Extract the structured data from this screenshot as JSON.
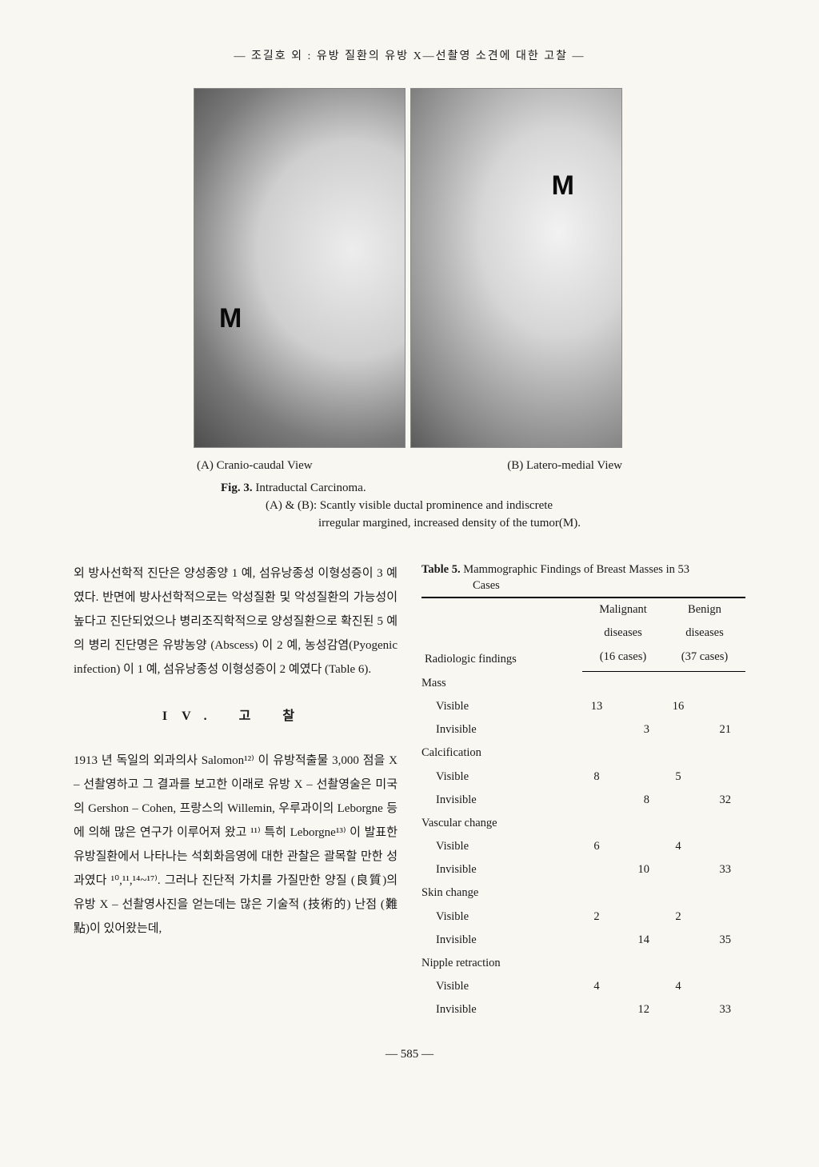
{
  "running_head": "— 조길호 외 : 유방 질환의 유방 X—선촬영 소견에 대한 고찰 —",
  "figure": {
    "m_label": "M",
    "sub_a": "(A) Cranio-caudal View",
    "sub_b": "(B) Latero-medial View",
    "num": "Fig. 3.",
    "title": "Intraductal Carcinoma.",
    "desc1": "(A) & (B): Scantly visible ductal prominence and indiscrete",
    "desc2": "irregular margined, increased density of the tumor(M)."
  },
  "left": {
    "p1": "외 방사선학적 진단은 양성종양 1 예, 섬유낭종성 이형성증이 3 예였다.   반면에 방사선학적으로는 악성질환 및 악성질환의 가능성이 높다고 진단되었으나 병리조직학적으로 양성질환으로 확진된 5 예의 병리 진단명은 유방농양 (Abscess) 이 2 예, 농성감염(Pyogenic infection) 이 1 예, 섬유낭종성 이형성증이 2 예였다 (Table 6).",
    "sec_head": "IV. 고   찰",
    "p2": "1913 년 독일의 외과의사 Salomon¹²⁾ 이 유방적출물 3,000 점을 X – 선촬영하고 그 결과를 보고한 이래로 유방 X – 선촬영술은 미국의 Gershon – Cohen, 프랑스의 Willemin, 우루과이의 Leborgne 등에 의해 많은 연구가 이루어져 왔고 ¹¹⁾ 특히 Leborgne¹³⁾ 이 발표한 유방질환에서 나타나는 석회화음영에 대한 관찰은 괄목할 만한 성과였다 ¹⁰,¹¹,¹⁴~¹⁷⁾. 그러나 진단적 가치를 가질만한 양질 (良質)의 유방 X – 선촬영사진을 얻는데는 많은 기술적 (技術的) 난점 (難點)이 있어왔는데,"
  },
  "table": {
    "title_label": "Table 5.",
    "title_text": "Mammographic Findings of Breast Masses in 53",
    "title_sub": "Cases",
    "head_radiologic": "Radiologic findings",
    "head_malig1": "Malignant",
    "head_malig2": "diseases",
    "head_malig3": "(16 cases)",
    "head_benign1": "Benign",
    "head_benign2": "diseases",
    "head_benign3": "(37 cases)",
    "rows": [
      {
        "type": "cat",
        "label": "Mass"
      },
      {
        "type": "sub",
        "label": "Visible",
        "m1": "13",
        "m2": "",
        "b1": "16",
        "b2": ""
      },
      {
        "type": "sub",
        "label": "Invisible",
        "m1": "",
        "m2": "3",
        "b1": "",
        "b2": "21"
      },
      {
        "type": "cat",
        "label": "Calcification"
      },
      {
        "type": "sub",
        "label": "Visible",
        "m1": "8",
        "m2": "",
        "b1": "5",
        "b2": ""
      },
      {
        "type": "sub",
        "label": "Invisible",
        "m1": "",
        "m2": "8",
        "b1": "",
        "b2": "32"
      },
      {
        "type": "cat",
        "label": "Vascular change"
      },
      {
        "type": "sub",
        "label": "Visible",
        "m1": "6",
        "m2": "",
        "b1": "4",
        "b2": ""
      },
      {
        "type": "sub",
        "label": "Invisible",
        "m1": "",
        "m2": "10",
        "b1": "",
        "b2": "33"
      },
      {
        "type": "cat",
        "label": "Skin change"
      },
      {
        "type": "sub",
        "label": "Visible",
        "m1": "2",
        "m2": "",
        "b1": "2",
        "b2": ""
      },
      {
        "type": "sub",
        "label": "Invisible",
        "m1": "",
        "m2": "14",
        "b1": "",
        "b2": "35"
      },
      {
        "type": "cat",
        "label": "Nipple retraction"
      },
      {
        "type": "sub",
        "label": "Visible",
        "m1": "4",
        "m2": "",
        "b1": "4",
        "b2": ""
      },
      {
        "type": "sub",
        "label": "Invisible",
        "m1": "",
        "m2": "12",
        "b1": "",
        "b2": "33"
      }
    ]
  },
  "page_num": "— 585 —"
}
